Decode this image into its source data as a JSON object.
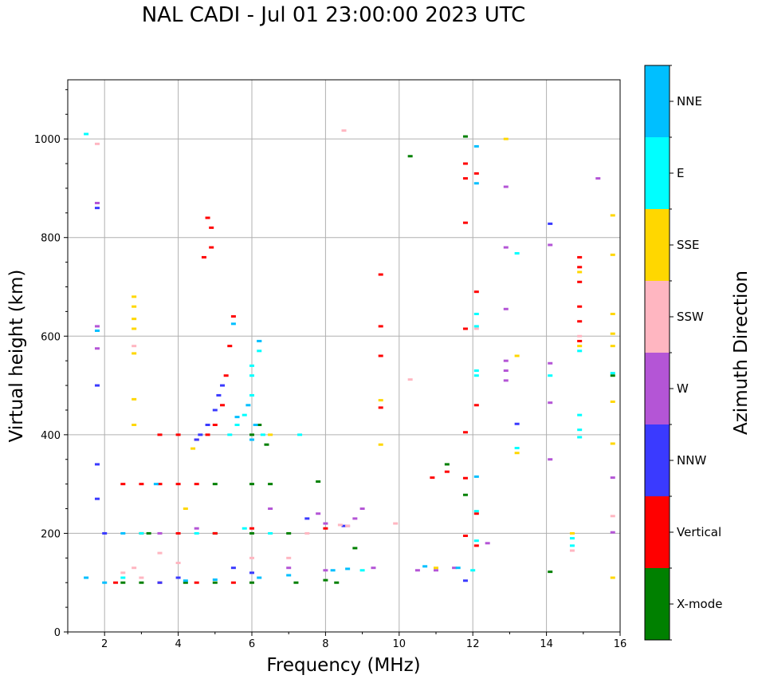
{
  "chart_data": {
    "type": "scatter",
    "title": "NAL CADI - Jul 01 23:00:00 2023 UTC",
    "xlabel": "Frequency (MHz)",
    "ylabel": "Virtual height (km)",
    "xlim": [
      1,
      16
    ],
    "ylim": [
      0,
      1120
    ],
    "xticks": [
      2,
      4,
      6,
      8,
      10,
      12,
      14,
      16
    ],
    "yticks": [
      0,
      200,
      400,
      600,
      800,
      1000
    ],
    "grid": true,
    "colorbar": {
      "label": "Azimuth Direction",
      "categories": [
        "X-mode",
        "Vertical",
        "NNW",
        "W",
        "SSW",
        "SSE",
        "E",
        "NNE"
      ],
      "colors": [
        "#008000",
        "#ff0000",
        "#3a3aff",
        "#b455d6",
        "#ffb6c1",
        "#ffd700",
        "#00ffff",
        "#00bfff"
      ]
    },
    "series": [
      {
        "name": "X-mode",
        "points": [
          [
            8.8,
            170
          ],
          [
            11.8,
            278
          ],
          [
            14.1,
            122
          ],
          [
            11.3,
            340
          ],
          [
            10.3,
            965
          ],
          [
            11.8,
            1005
          ],
          [
            4.2,
            100
          ],
          [
            5.0,
            100
          ],
          [
            6.0,
            100
          ],
          [
            7.2,
            100
          ],
          [
            8.0,
            105
          ],
          [
            8.3,
            100
          ],
          [
            3.2,
            200
          ],
          [
            5.0,
            200
          ],
          [
            6.0,
            200
          ],
          [
            7.0,
            200
          ],
          [
            5.0,
            300
          ],
          [
            6.0,
            300
          ],
          [
            6.5,
            300
          ],
          [
            6.0,
            400
          ],
          [
            6.2,
            420
          ],
          [
            6.4,
            380
          ],
          [
            3.0,
            100
          ],
          [
            2.5,
            100
          ],
          [
            7.8,
            305
          ],
          [
            15.8,
            520
          ]
        ]
      },
      {
        "name": "Vertical",
        "points": [
          [
            2.3,
            100
          ],
          [
            2.5,
            300
          ],
          [
            3.0,
            300
          ],
          [
            3.5,
            300
          ],
          [
            4.0,
            300
          ],
          [
            4.5,
            300
          ],
          [
            3.5,
            400
          ],
          [
            4.0,
            400
          ],
          [
            4.5,
            390
          ],
          [
            4.8,
            400
          ],
          [
            5.0,
            420
          ],
          [
            5.2,
            460
          ],
          [
            5.3,
            520
          ],
          [
            5.4,
            580
          ],
          [
            5.5,
            640
          ],
          [
            4.9,
            780
          ],
          [
            4.8,
            840
          ],
          [
            4.9,
            820
          ],
          [
            4.7,
            760
          ],
          [
            3.0,
            200
          ],
          [
            4.0,
            200
          ],
          [
            5.0,
            200
          ],
          [
            3.5,
            100
          ],
          [
            4.5,
            100
          ],
          [
            5.5,
            100
          ],
          [
            11.8,
            830
          ],
          [
            11.8,
            920
          ],
          [
            11.8,
            950
          ],
          [
            11.8,
            615
          ],
          [
            11.8,
            405
          ],
          [
            11.8,
            312
          ],
          [
            11.8,
            195
          ],
          [
            12.1,
            930
          ],
          [
            12.1,
            690
          ],
          [
            12.1,
            460
          ],
          [
            12.1,
            175
          ],
          [
            9.5,
            620
          ],
          [
            9.5,
            560
          ],
          [
            9.5,
            455
          ],
          [
            9.5,
            725
          ],
          [
            14.9,
            760
          ],
          [
            14.9,
            740
          ],
          [
            14.9,
            710
          ],
          [
            14.9,
            660
          ],
          [
            14.9,
            630
          ],
          [
            14.9,
            590
          ],
          [
            12.1,
            240
          ],
          [
            10.9,
            313
          ],
          [
            11.3,
            325
          ],
          [
            8.0,
            210
          ],
          [
            6.0,
            210
          ]
        ]
      },
      {
        "name": "NNW",
        "points": [
          [
            1.8,
            860
          ],
          [
            4.6,
            400
          ],
          [
            4.8,
            420
          ],
          [
            5.0,
            450
          ],
          [
            5.1,
            480
          ],
          [
            5.2,
            500
          ],
          [
            4.5,
            390
          ],
          [
            13.2,
            422
          ],
          [
            14.1,
            828
          ],
          [
            11.8,
            104
          ],
          [
            3.5,
            100
          ],
          [
            4.0,
            110
          ],
          [
            5.5,
            130
          ],
          [
            6.0,
            120
          ],
          [
            1.8,
            340
          ],
          [
            1.8,
            500
          ],
          [
            8.5,
            215
          ],
          [
            1.8,
            270
          ],
          [
            2.0,
            200
          ],
          [
            7.5,
            230
          ]
        ]
      },
      {
        "name": "W",
        "points": [
          [
            1.8,
            575
          ],
          [
            1.8,
            620
          ],
          [
            1.8,
            870
          ],
          [
            12.9,
            550
          ],
          [
            12.9,
            530
          ],
          [
            12.9,
            510
          ],
          [
            12.9,
            655
          ],
          [
            12.9,
            780
          ],
          [
            12.9,
            903
          ],
          [
            14.1,
            545
          ],
          [
            14.1,
            465
          ],
          [
            14.1,
            350
          ],
          [
            14.1,
            785
          ],
          [
            15.4,
            920
          ],
          [
            15.8,
            313
          ],
          [
            15.8,
            202
          ],
          [
            9.0,
            250
          ],
          [
            8.8,
            230
          ],
          [
            8.6,
            215
          ],
          [
            9.3,
            130
          ],
          [
            10.5,
            125
          ],
          [
            11.0,
            125
          ],
          [
            12.4,
            180
          ],
          [
            8.0,
            220
          ],
          [
            7.8,
            240
          ],
          [
            6.5,
            250
          ],
          [
            3.5,
            200
          ],
          [
            4.5,
            210
          ],
          [
            7.0,
            130
          ],
          [
            8.0,
            125
          ],
          [
            11.5,
            130
          ]
        ]
      },
      {
        "name": "SSW",
        "points": [
          [
            2.5,
            120
          ],
          [
            2.8,
            130
          ],
          [
            3.0,
            110
          ],
          [
            3.5,
            160
          ],
          [
            4.0,
            140
          ],
          [
            7.5,
            200
          ],
          [
            8.4,
            217
          ],
          [
            8.6,
            215
          ],
          [
            9.9,
            220
          ],
          [
            10.3,
            512
          ],
          [
            14.7,
            165
          ],
          [
            15.8,
            235
          ],
          [
            1.8,
            990
          ],
          [
            2.8,
            580
          ],
          [
            8.5,
            1017
          ],
          [
            12.1,
            615
          ],
          [
            14.9,
            600
          ],
          [
            6.0,
            150
          ],
          [
            7.0,
            150
          ]
        ]
      },
      {
        "name": "SSE",
        "points": [
          [
            2.8,
            680
          ],
          [
            2.8,
            660
          ],
          [
            2.8,
            635
          ],
          [
            2.8,
            615
          ],
          [
            2.8,
            565
          ],
          [
            2.8,
            472
          ],
          [
            2.8,
            420
          ],
          [
            9.5,
            470
          ],
          [
            9.5,
            380
          ],
          [
            12.9,
            1000
          ],
          [
            13.2,
            560
          ],
          [
            13.2,
            363
          ],
          [
            14.7,
            200
          ],
          [
            14.9,
            580
          ],
          [
            14.9,
            730
          ],
          [
            15.8,
            845
          ],
          [
            15.8,
            765
          ],
          [
            15.8,
            645
          ],
          [
            15.8,
            605
          ],
          [
            15.8,
            580
          ],
          [
            15.8,
            467
          ],
          [
            15.8,
            382
          ],
          [
            15.8,
            110
          ],
          [
            4.4,
            372
          ],
          [
            6.5,
            400
          ],
          [
            11.0,
            130
          ],
          [
            4.2,
            250
          ]
        ]
      },
      {
        "name": "E",
        "points": [
          [
            6.2,
            590
          ],
          [
            6.2,
            570
          ],
          [
            6.0,
            540
          ],
          [
            6.0,
            520
          ],
          [
            6.0,
            480
          ],
          [
            5.8,
            440
          ],
          [
            5.6,
            420
          ],
          [
            5.4,
            400
          ],
          [
            12.1,
            520
          ],
          [
            12.1,
            530
          ],
          [
            12.1,
            620
          ],
          [
            12.1,
            645
          ],
          [
            12.1,
            245
          ],
          [
            12.1,
            185
          ],
          [
            13.2,
            373
          ],
          [
            13.2,
            768
          ],
          [
            14.1,
            520
          ],
          [
            14.7,
            190
          ],
          [
            14.7,
            175
          ],
          [
            14.9,
            440
          ],
          [
            14.9,
            410
          ],
          [
            14.9,
            395
          ],
          [
            14.9,
            570
          ],
          [
            6.3,
            400
          ],
          [
            7.3,
            400
          ],
          [
            2.5,
            110
          ],
          [
            3.0,
            200
          ],
          [
            4.5,
            200
          ],
          [
            5.8,
            210
          ],
          [
            6.5,
            200
          ],
          [
            9.0,
            125
          ],
          [
            12.0,
            125
          ],
          [
            1.5,
            1010
          ],
          [
            15.8,
            525
          ]
        ]
      },
      {
        "name": "NNE",
        "points": [
          [
            12.1,
            985
          ],
          [
            12.1,
            910
          ],
          [
            12.1,
            315
          ],
          [
            1.5,
            110
          ],
          [
            2.0,
            100
          ],
          [
            4.2,
            104
          ],
          [
            5.0,
            106
          ],
          [
            6.2,
            110
          ],
          [
            7.0,
            115
          ],
          [
            8.2,
            125
          ],
          [
            8.6,
            128
          ],
          [
            10.7,
            133
          ],
          [
            11.6,
            130
          ],
          [
            6.0,
            390
          ],
          [
            6.2,
            590
          ],
          [
            5.9,
            460
          ],
          [
            6.1,
            420
          ],
          [
            1.8,
            611
          ],
          [
            2.5,
            200
          ],
          [
            3.4,
            300
          ],
          [
            5.5,
            625
          ],
          [
            5.6,
            436
          ]
        ]
      }
    ]
  }
}
